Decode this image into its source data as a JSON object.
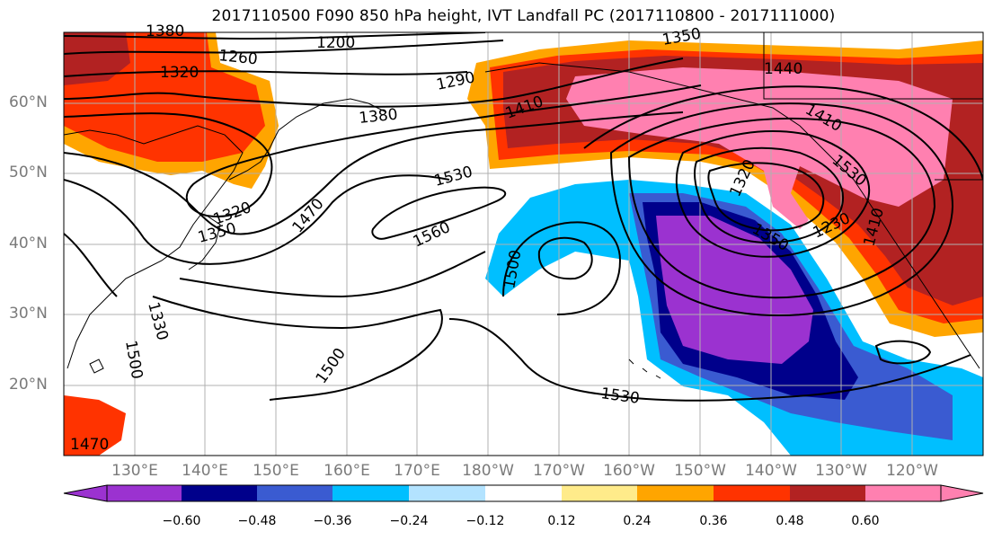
{
  "title": "2017110500 F090 850 hPa height, IVT Landfall PC (2017110800 - 2017111000)",
  "map": {
    "lat_labels": [
      "60°N",
      "50°N",
      "40°N",
      "30°N",
      "20°N"
    ],
    "lon_labels": [
      "130°E",
      "140°E",
      "150°E",
      "160°E",
      "170°E",
      "180°W",
      "170°W",
      "160°W",
      "150°W",
      "140°W",
      "130°W",
      "120°W"
    ],
    "contour_labels": [
      "1320",
      "1260",
      "1200",
      "1350",
      "1290",
      "1380",
      "1410",
      "1440",
      "1410",
      "1530",
      "1470",
      "1560",
      "1500",
      "1350",
      "1320",
      "1330",
      "1500",
      "1530",
      "1350",
      "1320",
      "1230",
      "1410",
      "1530",
      "1500",
      "1470",
      "1380"
    ]
  },
  "colorbar": {
    "ticks": [
      "−0.60",
      "−0.48",
      "−0.36",
      "−0.24",
      "−0.12",
      "0.12",
      "0.24",
      "0.36",
      "0.48",
      "0.60"
    ],
    "colors": [
      "#9b32d0",
      "#00008b",
      "#3a5bd1",
      "#00bfff",
      "#b3e3ff",
      "#ffffff",
      "#ffeb8a",
      "#ffa500",
      "#ff3300",
      "#b22222",
      "#ff80b0"
    ]
  }
}
